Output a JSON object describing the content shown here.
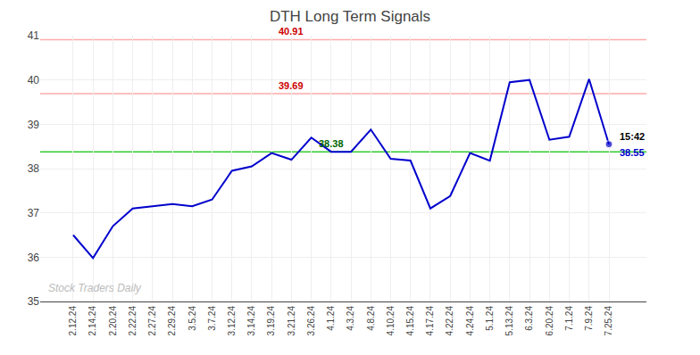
{
  "chart_data": {
    "type": "line",
    "title": "DTH Long Term Signals",
    "categories": [
      "2.12.24",
      "2.14.24",
      "2.20.24",
      "2.22.24",
      "2.27.24",
      "2.29.24",
      "3.5.24",
      "3.7.24",
      "3.12.24",
      "3.14.24",
      "3.19.24",
      "3.21.24",
      "3.26.24",
      "4.1.24",
      "4.3.24",
      "4.8.24",
      "4.10.24",
      "4.15.24",
      "4.17.24",
      "4.22.24",
      "4.24.24",
      "5.1.24",
      "5.13.24",
      "6.3.24",
      "6.20.24",
      "7.1.24",
      "7.9.24",
      "7.25.24"
    ],
    "values": [
      36.5,
      35.98,
      36.7,
      37.1,
      37.15,
      37.2,
      37.15,
      37.3,
      37.95,
      38.05,
      38.35,
      38.2,
      38.7,
      38.38,
      38.38,
      38.88,
      38.22,
      38.18,
      37.1,
      37.38,
      38.35,
      38.18,
      39.95,
      40.0,
      38.65,
      38.72,
      40.02,
      38.55
    ],
    "color": "#0000cc",
    "marker": "circle",
    "ylim": [
      35,
      41
    ],
    "yticks": [
      35,
      36,
      37,
      38,
      39,
      40,
      41
    ],
    "grid": true,
    "reference_lines": [
      {
        "value": 38.38,
        "color": "#33cc33"
      },
      {
        "value": 39.69,
        "color": "#ffaaaa"
      },
      {
        "value": 40.91,
        "color": "#ffaaaa"
      }
    ],
    "annotations": [
      {
        "text": "40.91",
        "x": "3.21.24",
        "y": 40.91,
        "color": "#cc0000"
      },
      {
        "text": "39.69",
        "x": "3.21.24",
        "y": 39.69,
        "color": "#cc0000"
      },
      {
        "text": "38.38",
        "x": "4.1.24",
        "y": 38.38,
        "color": "#006600"
      },
      {
        "text": "15:42",
        "x": "7.25.24",
        "y": 38.55,
        "color": "#000000"
      },
      {
        "text": "38.55",
        "x": "7.25.24",
        "y": 38.55,
        "color": "#0000cc"
      }
    ],
    "watermark": {
      "text": "Stock Traders Daily",
      "color": "#bbbbbb"
    }
  }
}
